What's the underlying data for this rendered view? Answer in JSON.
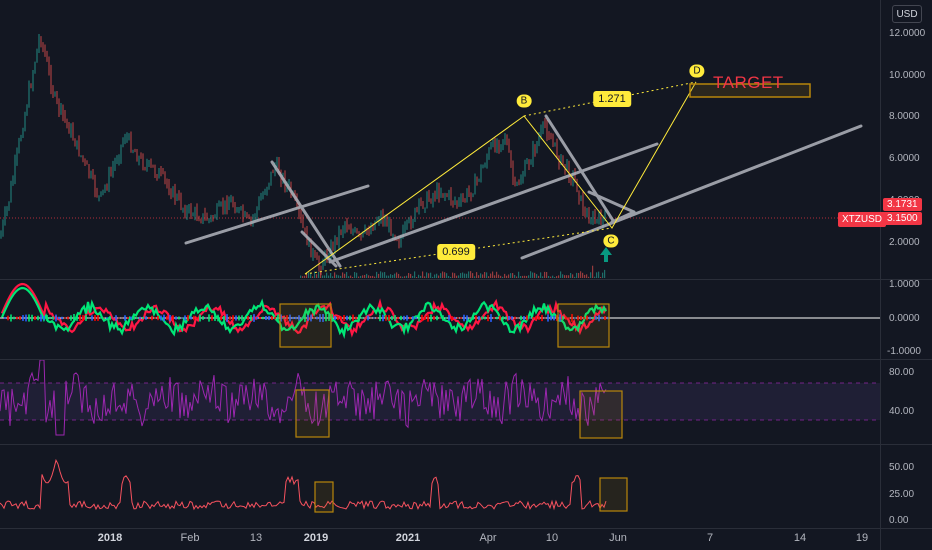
{
  "header": {
    "currency_button": "USD"
  },
  "price_axis": {
    "labels": [
      "12.0000",
      "10.0000",
      "8.0000",
      "6.0000",
      "4.0000",
      "2.0000"
    ],
    "current_price": "3.1500",
    "symbol": "XTZUSD",
    "marker_price": "3.1731",
    "tag_color": "#f23645"
  },
  "oscillator_axis": {
    "labels": [
      "1.0000",
      "0.0000",
      "-1.0000"
    ]
  },
  "rsi_axis": {
    "labels": [
      "80.00",
      "40.00"
    ]
  },
  "lower_axis": {
    "labels": [
      "50.00",
      "25.00",
      "0.00"
    ]
  },
  "time_axis": {
    "ticks": [
      {
        "label": "2018",
        "bold": true
      },
      {
        "label": "Feb",
        "bold": false
      },
      {
        "label": "13",
        "bold": false
      },
      {
        "label": "2019",
        "bold": true
      },
      {
        "label": "2021",
        "bold": true
      },
      {
        "label": "Apr",
        "bold": false
      },
      {
        "label": "10",
        "bold": false
      },
      {
        "label": "Jun",
        "bold": false
      },
      {
        "label": "7",
        "bold": false
      },
      {
        "label": "14",
        "bold": false
      },
      {
        "label": "19",
        "bold": false
      }
    ]
  },
  "drawings": {
    "points": [
      "B",
      "C",
      "D"
    ],
    "ratios": [
      "1.271",
      "0.699"
    ],
    "target_label": "TARGET"
  },
  "colors": {
    "background": "#131722",
    "drawing_yellow": "#ffeb3b",
    "trendline_gray": "#b2b5be",
    "rsi_purple": "#9c27b0",
    "lower_line": "#f7525f",
    "arrow_teal": "#089981",
    "box_orange": "#b8860b"
  }
}
